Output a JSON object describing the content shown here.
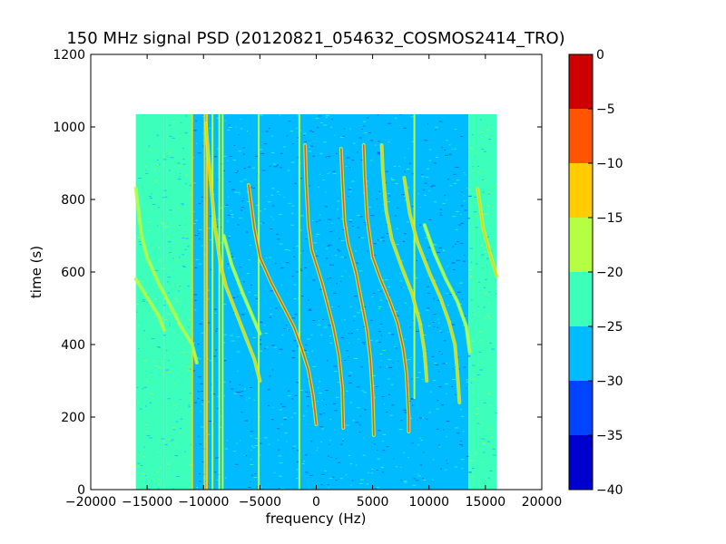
{
  "chart_data": {
    "type": "heatmap",
    "title": "150 MHz signal PSD (20120821_054632_COSMOS2414_TRO)",
    "xlabel": "frequency (Hz)",
    "ylabel": "time (s)",
    "xlim": [
      -20000,
      20000
    ],
    "ylim": [
      0,
      1200
    ],
    "xticks": [
      -20000,
      -15000,
      -10000,
      -5000,
      0,
      5000,
      10000,
      15000,
      20000
    ],
    "xtick_labels": [
      "−20000",
      "−15000",
      "−10000",
      "−5000",
      "0",
      "5000",
      "10000",
      "15000",
      "20000"
    ],
    "yticks": [
      0,
      200,
      400,
      600,
      800,
      1000,
      1200
    ],
    "ytick_labels": [
      "0",
      "200",
      "400",
      "600",
      "800",
      "1000",
      "1200"
    ],
    "data_extent": {
      "x": [
        -16000,
        16000
      ],
      "y": [
        0,
        1035
      ]
    },
    "colorbar": {
      "ticks": [
        0,
        -5,
        -10,
        -15,
        -20,
        -25,
        -30,
        -35,
        -40
      ],
      "tick_labels": [
        "0",
        "−5",
        "−10",
        "−15",
        "−20",
        "−25",
        "−30",
        "−35",
        "−40"
      ],
      "levels": [
        {
          "from": -40,
          "to": -35,
          "color": "#0000cc"
        },
        {
          "from": -35,
          "to": -30,
          "color": "#0044ff"
        },
        {
          "from": -30,
          "to": -25,
          "color": "#00bbff"
        },
        {
          "from": -25,
          "to": -20,
          "color": "#3cffbc"
        },
        {
          "from": -20,
          "to": -15,
          "color": "#b4ff44"
        },
        {
          "from": -15,
          "to": -10,
          "color": "#ffcc00"
        },
        {
          "from": -10,
          "to": -5,
          "color": "#ff5500"
        },
        {
          "from": -5,
          "to": 0,
          "color": "#cc0000"
        }
      ]
    },
    "background_bands": [
      {
        "x": [
          -16000,
          -13500
        ],
        "level": -22
      },
      {
        "x": [
          -13500,
          -11000
        ],
        "level": -25
      },
      {
        "x": [
          -11000,
          13500
        ],
        "level": -27
      },
      {
        "x": [
          13500,
          16000
        ],
        "level": -22
      }
    ],
    "vertical_lines": [
      {
        "x": -11000,
        "y": [
          0,
          1035
        ],
        "level": -14
      },
      {
        "x": -9900,
        "y": [
          0,
          1035
        ],
        "level": -12
      },
      {
        "x": -9700,
        "y": [
          0,
          1035
        ],
        "level": -12
      },
      {
        "x": -9200,
        "y": [
          0,
          1035
        ],
        "level": -16
      },
      {
        "x": -8600,
        "y": [
          0,
          1035
        ],
        "level": -16
      },
      {
        "x": -8300,
        "y": [
          0,
          1035
        ],
        "level": -16
      },
      {
        "x": -5100,
        "y": [
          0,
          1035
        ],
        "level": -17
      },
      {
        "x": -1500,
        "y": [
          0,
          1035
        ],
        "level": -17
      },
      {
        "x": 8700,
        "y": [
          250,
          1035
        ],
        "level": -19
      }
    ],
    "signal_traces": [
      {
        "points": [
          [
            -16000,
            830
          ],
          [
            -15500,
            700
          ],
          [
            -15000,
            640
          ],
          [
            -14000,
            570
          ],
          [
            -13000,
            510
          ],
          [
            -12000,
            450
          ],
          [
            -11000,
            400
          ],
          [
            -10600,
            350
          ]
        ],
        "level": -16
      },
      {
        "points": [
          [
            -16000,
            580
          ],
          [
            -15000,
            530
          ],
          [
            -14000,
            480
          ],
          [
            -13500,
            440
          ]
        ],
        "level": -16
      },
      {
        "points": [
          [
            -9800,
            1010
          ],
          [
            -9400,
            860
          ],
          [
            -9000,
            730
          ],
          [
            -8500,
            620
          ],
          [
            -8000,
            560
          ],
          [
            -7500,
            520
          ],
          [
            -7000,
            480
          ],
          [
            -6500,
            440
          ],
          [
            -6000,
            400
          ],
          [
            -5500,
            360
          ],
          [
            -5000,
            300
          ]
        ],
        "level": -15
      },
      {
        "points": [
          [
            -8200,
            700
          ],
          [
            -7500,
            620
          ],
          [
            -6500,
            540
          ],
          [
            -5000,
            430
          ]
        ],
        "level": -17
      },
      {
        "points": [
          [
            -6000,
            840
          ],
          [
            -5500,
            720
          ],
          [
            -5000,
            640
          ],
          [
            -4000,
            570
          ],
          [
            -3000,
            510
          ],
          [
            -2000,
            450
          ],
          [
            -1300,
            390
          ],
          [
            -700,
            330
          ],
          [
            -300,
            260
          ],
          [
            0,
            180
          ]
        ],
        "level": -6
      },
      {
        "points": [
          [
            -1000,
            950
          ],
          [
            -900,
            850
          ],
          [
            -700,
            730
          ],
          [
            -400,
            660
          ],
          [
            0,
            620
          ],
          [
            500,
            570
          ],
          [
            1000,
            510
          ],
          [
            1500,
            450
          ],
          [
            2000,
            370
          ],
          [
            2300,
            280
          ],
          [
            2400,
            170
          ]
        ],
        "level": -6
      },
      {
        "points": [
          [
            2200,
            940
          ],
          [
            2300,
            860
          ],
          [
            2500,
            740
          ],
          [
            2800,
            680
          ],
          [
            3500,
            600
          ],
          [
            4000,
            520
          ],
          [
            4500,
            440
          ],
          [
            4800,
            360
          ],
          [
            5000,
            260
          ],
          [
            5100,
            150
          ]
        ],
        "level": -6
      },
      {
        "points": [
          [
            4200,
            950
          ],
          [
            4300,
            860
          ],
          [
            4500,
            750
          ],
          [
            5000,
            640
          ],
          [
            5700,
            580
          ],
          [
            6500,
            520
          ],
          [
            7200,
            460
          ],
          [
            7700,
            390
          ],
          [
            8000,
            320
          ],
          [
            8200,
            200
          ],
          [
            8200,
            160
          ]
        ],
        "level": -6
      },
      {
        "points": [
          [
            5800,
            950
          ],
          [
            5900,
            880
          ],
          [
            6200,
            770
          ],
          [
            6700,
            690
          ],
          [
            7500,
            620
          ],
          [
            8500,
            540
          ],
          [
            9200,
            460
          ],
          [
            9600,
            380
          ],
          [
            9800,
            300
          ]
        ],
        "level": -13
      },
      {
        "points": [
          [
            7800,
            860
          ],
          [
            8300,
            760
          ],
          [
            9000,
            680
          ],
          [
            10000,
            600
          ],
          [
            11000,
            530
          ],
          [
            11800,
            460
          ],
          [
            12300,
            400
          ],
          [
            12500,
            330
          ],
          [
            12700,
            240
          ]
        ],
        "level": -15
      },
      {
        "points": [
          [
            9600,
            730
          ],
          [
            10500,
            650
          ],
          [
            11500,
            580
          ],
          [
            12500,
            520
          ],
          [
            13300,
            450
          ],
          [
            13600,
            380
          ]
        ],
        "level": -16
      },
      {
        "points": [
          [
            14300,
            830
          ],
          [
            14800,
            720
          ],
          [
            15500,
            640
          ],
          [
            16000,
            590
          ]
        ],
        "level": -15
      }
    ]
  }
}
